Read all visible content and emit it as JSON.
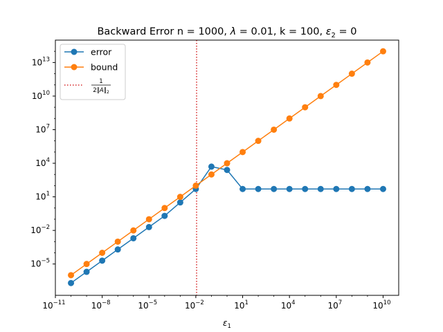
{
  "chart_data": {
    "type": "line",
    "title_parts": {
      "prefix": "Backward Error n = 1000, ",
      "lambda_symbol": "λ",
      "lambda_rest": " = 0.01, k = 100, ",
      "eps_symbol": "ε",
      "eps_sub": "2",
      "eps_rest": " = 0"
    },
    "xlabel": {
      "symbol": "ε",
      "sub": "1"
    },
    "ylabel": "",
    "x_scale": "log",
    "y_scale": "log",
    "xlim_exp": [
      -11,
      11
    ],
    "ylim_exp": [
      -7.8,
      15.0
    ],
    "x_ticks": [
      {
        "base": "10",
        "exp": "−11",
        "value_exp": -11
      },
      {
        "base": "10",
        "exp": "−8",
        "value_exp": -8
      },
      {
        "base": "10",
        "exp": "−5",
        "value_exp": -5
      },
      {
        "base": "10",
        "exp": "−2",
        "value_exp": -2
      },
      {
        "base": "10",
        "exp": "1",
        "value_exp": 1
      },
      {
        "base": "10",
        "exp": "4",
        "value_exp": 4
      },
      {
        "base": "10",
        "exp": "7",
        "value_exp": 7
      },
      {
        "base": "10",
        "exp": "10",
        "value_exp": 10
      }
    ],
    "y_ticks": [
      {
        "base": "10",
        "exp": "−5",
        "value_exp": -5
      },
      {
        "base": "10",
        "exp": "−2",
        "value_exp": -2
      },
      {
        "base": "10",
        "exp": "1",
        "value_exp": 1
      },
      {
        "base": "10",
        "exp": "4",
        "value_exp": 4
      },
      {
        "base": "10",
        "exp": "7",
        "value_exp": 7
      },
      {
        "base": "10",
        "exp": "10",
        "value_exp": 10
      },
      {
        "base": "10",
        "exp": "13",
        "value_exp": 13
      }
    ],
    "grid": false,
    "legend_position": "top-left",
    "series": [
      {
        "name": "error",
        "color": "#1f77b4",
        "marker": "circle",
        "x_exp": [
          -10,
          -9,
          -8,
          -7,
          -6,
          -5,
          -4,
          -3,
          -2,
          -1,
          0,
          1,
          2,
          3,
          4,
          5,
          6,
          7,
          8,
          9,
          10
        ],
        "y_exp": [
          -6.7,
          -5.7,
          -4.7,
          -3.7,
          -2.7,
          -1.7,
          -0.7,
          0.5,
          1.7,
          3.7,
          3.4,
          1.7,
          1.7,
          1.7,
          1.7,
          1.7,
          1.7,
          1.7,
          1.7,
          1.7,
          1.7
        ]
      },
      {
        "name": "bound",
        "color": "#ff7f0e",
        "marker": "circle",
        "x_exp": [
          -10,
          -9,
          -8,
          -7,
          -6,
          -5,
          -4,
          -3,
          -2,
          -1,
          0,
          1,
          2,
          3,
          4,
          5,
          6,
          7,
          8,
          9,
          10
        ],
        "y_exp": [
          -6.0,
          -5.0,
          -4.0,
          -3.0,
          -2.0,
          -1.0,
          0.0,
          1.0,
          2.0,
          3.0,
          4.0,
          5.0,
          6.0,
          7.0,
          8.0,
          9.0,
          10.0,
          11.0,
          12.0,
          13.0,
          14.0
        ]
      }
    ],
    "vline": {
      "label_num": "1",
      "label_den_prefix": "2‖",
      "label_den_var": "A",
      "label_den_suffix": "‖",
      "label_den_sub": "2",
      "x_exp": -1.95,
      "color": "#d62728",
      "style": "dotted"
    }
  }
}
